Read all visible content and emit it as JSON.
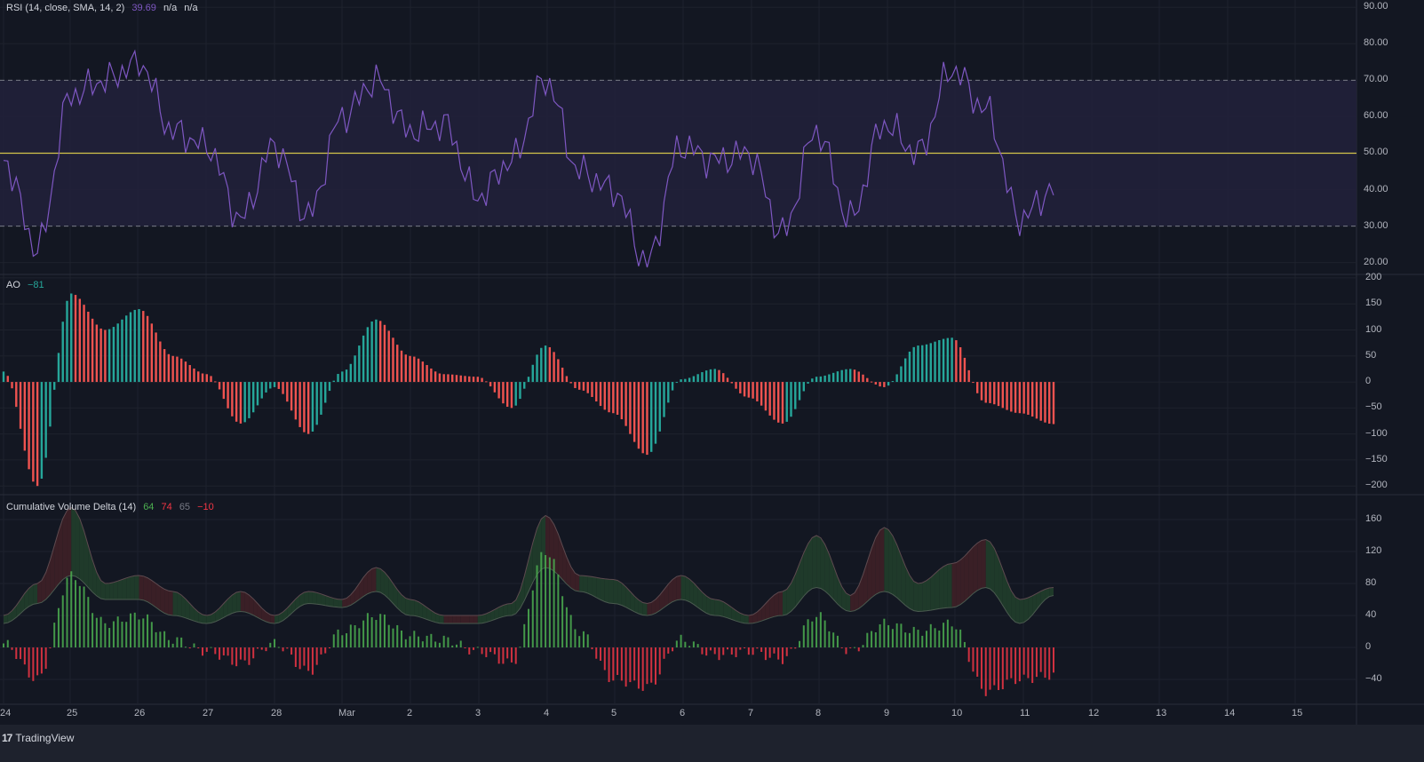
{
  "chart_data": [
    {
      "type": "line",
      "title": "RSI (14, close, SMA, 14, 2)",
      "legend": {
        "name": "RSI (14, close, SMA, 14, 2)",
        "value": "39.69",
        "extra": [
          "n/a",
          "n/a"
        ]
      },
      "ylim": [
        17,
        92
      ],
      "y_ticks": [
        "90.00",
        "80.00",
        "70.00",
        "60.00",
        "50.00",
        "40.00",
        "30.00",
        "20.00"
      ],
      "bands": {
        "upper": 70,
        "middle": 50,
        "lower": 30
      },
      "colors": {
        "line": "#7e57c2",
        "band_fill": "#21203a",
        "middle": "#d4c44b",
        "band_border": "#787b86"
      },
      "x": [
        "24",
        "24.5",
        "25",
        "25.5",
        "26",
        "26.5",
        "27",
        "27.5",
        "28",
        "28.5",
        "Mar",
        "1.5",
        "2",
        "2.5",
        "3",
        "3.5",
        "4",
        "4.5",
        "5",
        "5.5",
        "6",
        "6.5",
        "7",
        "7.5",
        "8",
        "8.5",
        "9",
        "9.5",
        "10",
        "10.5",
        "11",
        "11.4"
      ],
      "series": [
        {
          "name": "RSI",
          "values": [
            48,
            24,
            66,
            70,
            75,
            56,
            52,
            32,
            52,
            33,
            60,
            70,
            56,
            58,
            38,
            48,
            70,
            45,
            40,
            20,
            52,
            48,
            50,
            28,
            56,
            32,
            58,
            50,
            73,
            62,
            32,
            40
          ]
        }
      ]
    },
    {
      "type": "bar",
      "title": "AO",
      "legend": {
        "name": "AO",
        "value": "−81"
      },
      "ylim": [
        -215,
        205
      ],
      "y_ticks": [
        "200",
        "150",
        "100",
        "50",
        "0",
        "−50",
        "−100",
        "−150",
        "−200"
      ],
      "colors": {
        "rising": "#26a69a",
        "falling": "#ef5350"
      },
      "x": [
        "24",
        "24.5",
        "25",
        "25.5",
        "26",
        "26.5",
        "27",
        "27.5",
        "28",
        "28.5",
        "Mar",
        "1.5",
        "2",
        "2.5",
        "3",
        "3.5",
        "4",
        "4.5",
        "5",
        "5.5",
        "6",
        "6.5",
        "7",
        "7.5",
        "8",
        "8.5",
        "9",
        "9.5",
        "10",
        "10.5",
        "11",
        "11.4"
      ],
      "series": [
        {
          "name": "AO",
          "values": [
            20,
            -200,
            170,
            100,
            140,
            50,
            15,
            -80,
            -10,
            -100,
            20,
            120,
            50,
            15,
            10,
            -50,
            70,
            -15,
            -60,
            -140,
            5,
            25,
            -30,
            -80,
            10,
            25,
            -10,
            70,
            85,
            -40,
            -60,
            -81
          ]
        }
      ]
    },
    {
      "type": "bar",
      "title": "Cumulative Volume Delta (14)",
      "legend": {
        "name": "Cumulative Volume Delta (14)",
        "values": [
          {
            "v": "64",
            "color": "#4caf50"
          },
          {
            "v": "74",
            "color": "#f23645"
          },
          {
            "v": "65",
            "color": "#787b86"
          },
          {
            "v": "−10",
            "color": "#f23645"
          }
        ]
      },
      "ylim": [
        -70,
        190
      ],
      "y_ticks": [
        "160",
        "120",
        "80",
        "40",
        "0",
        "−40"
      ],
      "colors": {
        "up": "#4caf50",
        "down": "#f23645",
        "up_fill": "#1f3a2a",
        "down_fill": "#3a1f26"
      },
      "x": [
        "24",
        "24.5",
        "25",
        "25.5",
        "26",
        "26.5",
        "27",
        "27.5",
        "28",
        "28.5",
        "Mar",
        "1.5",
        "2",
        "2.5",
        "3",
        "3.5",
        "4",
        "4.5",
        "5",
        "5.5",
        "6",
        "6.5",
        "7",
        "7.5",
        "8",
        "8.5",
        "9",
        "9.5",
        "10",
        "10.5",
        "11",
        "11.4"
      ],
      "series": [
        {
          "name": "CVD high",
          "values": [
            40,
            80,
            175,
            80,
            90,
            70,
            40,
            70,
            40,
            70,
            60,
            100,
            60,
            40,
            40,
            55,
            165,
            90,
            85,
            55,
            90,
            60,
            40,
            70,
            140,
            65,
            150,
            80,
            105,
            135,
            60,
            75
          ]
        },
        {
          "name": "CVD low",
          "values": [
            30,
            55,
            90,
            60,
            60,
            40,
            30,
            45,
            30,
            55,
            50,
            70,
            40,
            30,
            30,
            40,
            100,
            70,
            55,
            40,
            60,
            40,
            30,
            40,
            75,
            45,
            70,
            45,
            50,
            75,
            30,
            65
          ]
        },
        {
          "name": "Delta",
          "values": [
            5,
            -40,
            90,
            30,
            40,
            10,
            -5,
            -20,
            5,
            -30,
            20,
            40,
            15,
            10,
            -5,
            -20,
            120,
            20,
            -40,
            -50,
            10,
            -10,
            -5,
            -15,
            40,
            -5,
            30,
            20,
            30,
            -55,
            -40,
            -35
          ]
        }
      ]
    }
  ],
  "x_axis": {
    "labels": [
      "24",
      "25",
      "26",
      "27",
      "28",
      "Mar",
      "2",
      "3",
      "4",
      "5",
      "6",
      "7",
      "8",
      "9",
      "10",
      "11",
      "12",
      "13",
      "14",
      "15"
    ]
  },
  "footer": {
    "brand": "TradingView",
    "logo_glyph": "17"
  }
}
